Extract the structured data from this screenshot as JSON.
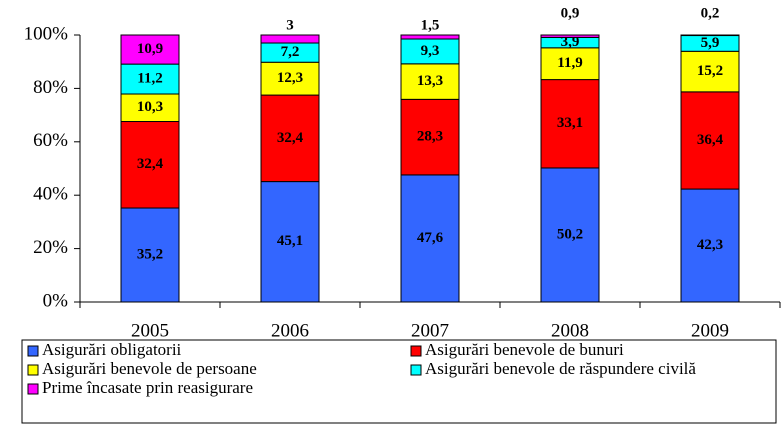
{
  "chart_data": {
    "type": "stacked_bar_100",
    "categories": [
      "2005",
      "2006",
      "2007",
      "2008",
      "2009"
    ],
    "series": [
      {
        "name": "Asigurări obligatorii",
        "color": "#3366ff",
        "values": [
          35.2,
          45.1,
          47.6,
          50.2,
          42.3
        ],
        "value_labels": [
          "35,2",
          "45,1",
          "47,6",
          "50,2",
          "42,3"
        ]
      },
      {
        "name": "Asigurări benevole de bunuri",
        "color": "#ff0000",
        "values": [
          32.4,
          32.4,
          28.3,
          33.1,
          36.4
        ],
        "value_labels": [
          "32,4",
          "32,4",
          "28,3",
          "33,1",
          "36,4"
        ]
      },
      {
        "name": "Asigurări benevole de persoane",
        "color": "#ffff00",
        "values": [
          10.3,
          12.3,
          13.3,
          11.9,
          15.2
        ],
        "value_labels": [
          "10,3",
          "12,3",
          "13,3",
          "11,9",
          "15,2"
        ]
      },
      {
        "name": "Asigurări benevole de răspundere civilă",
        "color": "#00ffff",
        "values": [
          11.2,
          7.2,
          9.3,
          3.9,
          5.9
        ],
        "value_labels": [
          "11,2",
          "7,2",
          "9,3",
          "3,9",
          "5,9"
        ]
      },
      {
        "name": "Prime încasate prin reasigurare",
        "color": "#ff00ff",
        "values": [
          10.9,
          3,
          1.5,
          0.9,
          0.2
        ],
        "value_labels": [
          "10,9",
          "3",
          "1,5",
          "0,9",
          "0,2"
        ]
      }
    ],
    "ylim": [
      0,
      100
    ],
    "yticks": [
      {
        "value": 0,
        "label": "0%"
      },
      {
        "value": 20,
        "label": "20%"
      },
      {
        "value": 40,
        "label": "40%"
      },
      {
        "value": 60,
        "label": "60%"
      },
      {
        "value": 80,
        "label": "80%"
      },
      {
        "value": 100,
        "label": "100%"
      }
    ],
    "legend": "bottom"
  }
}
